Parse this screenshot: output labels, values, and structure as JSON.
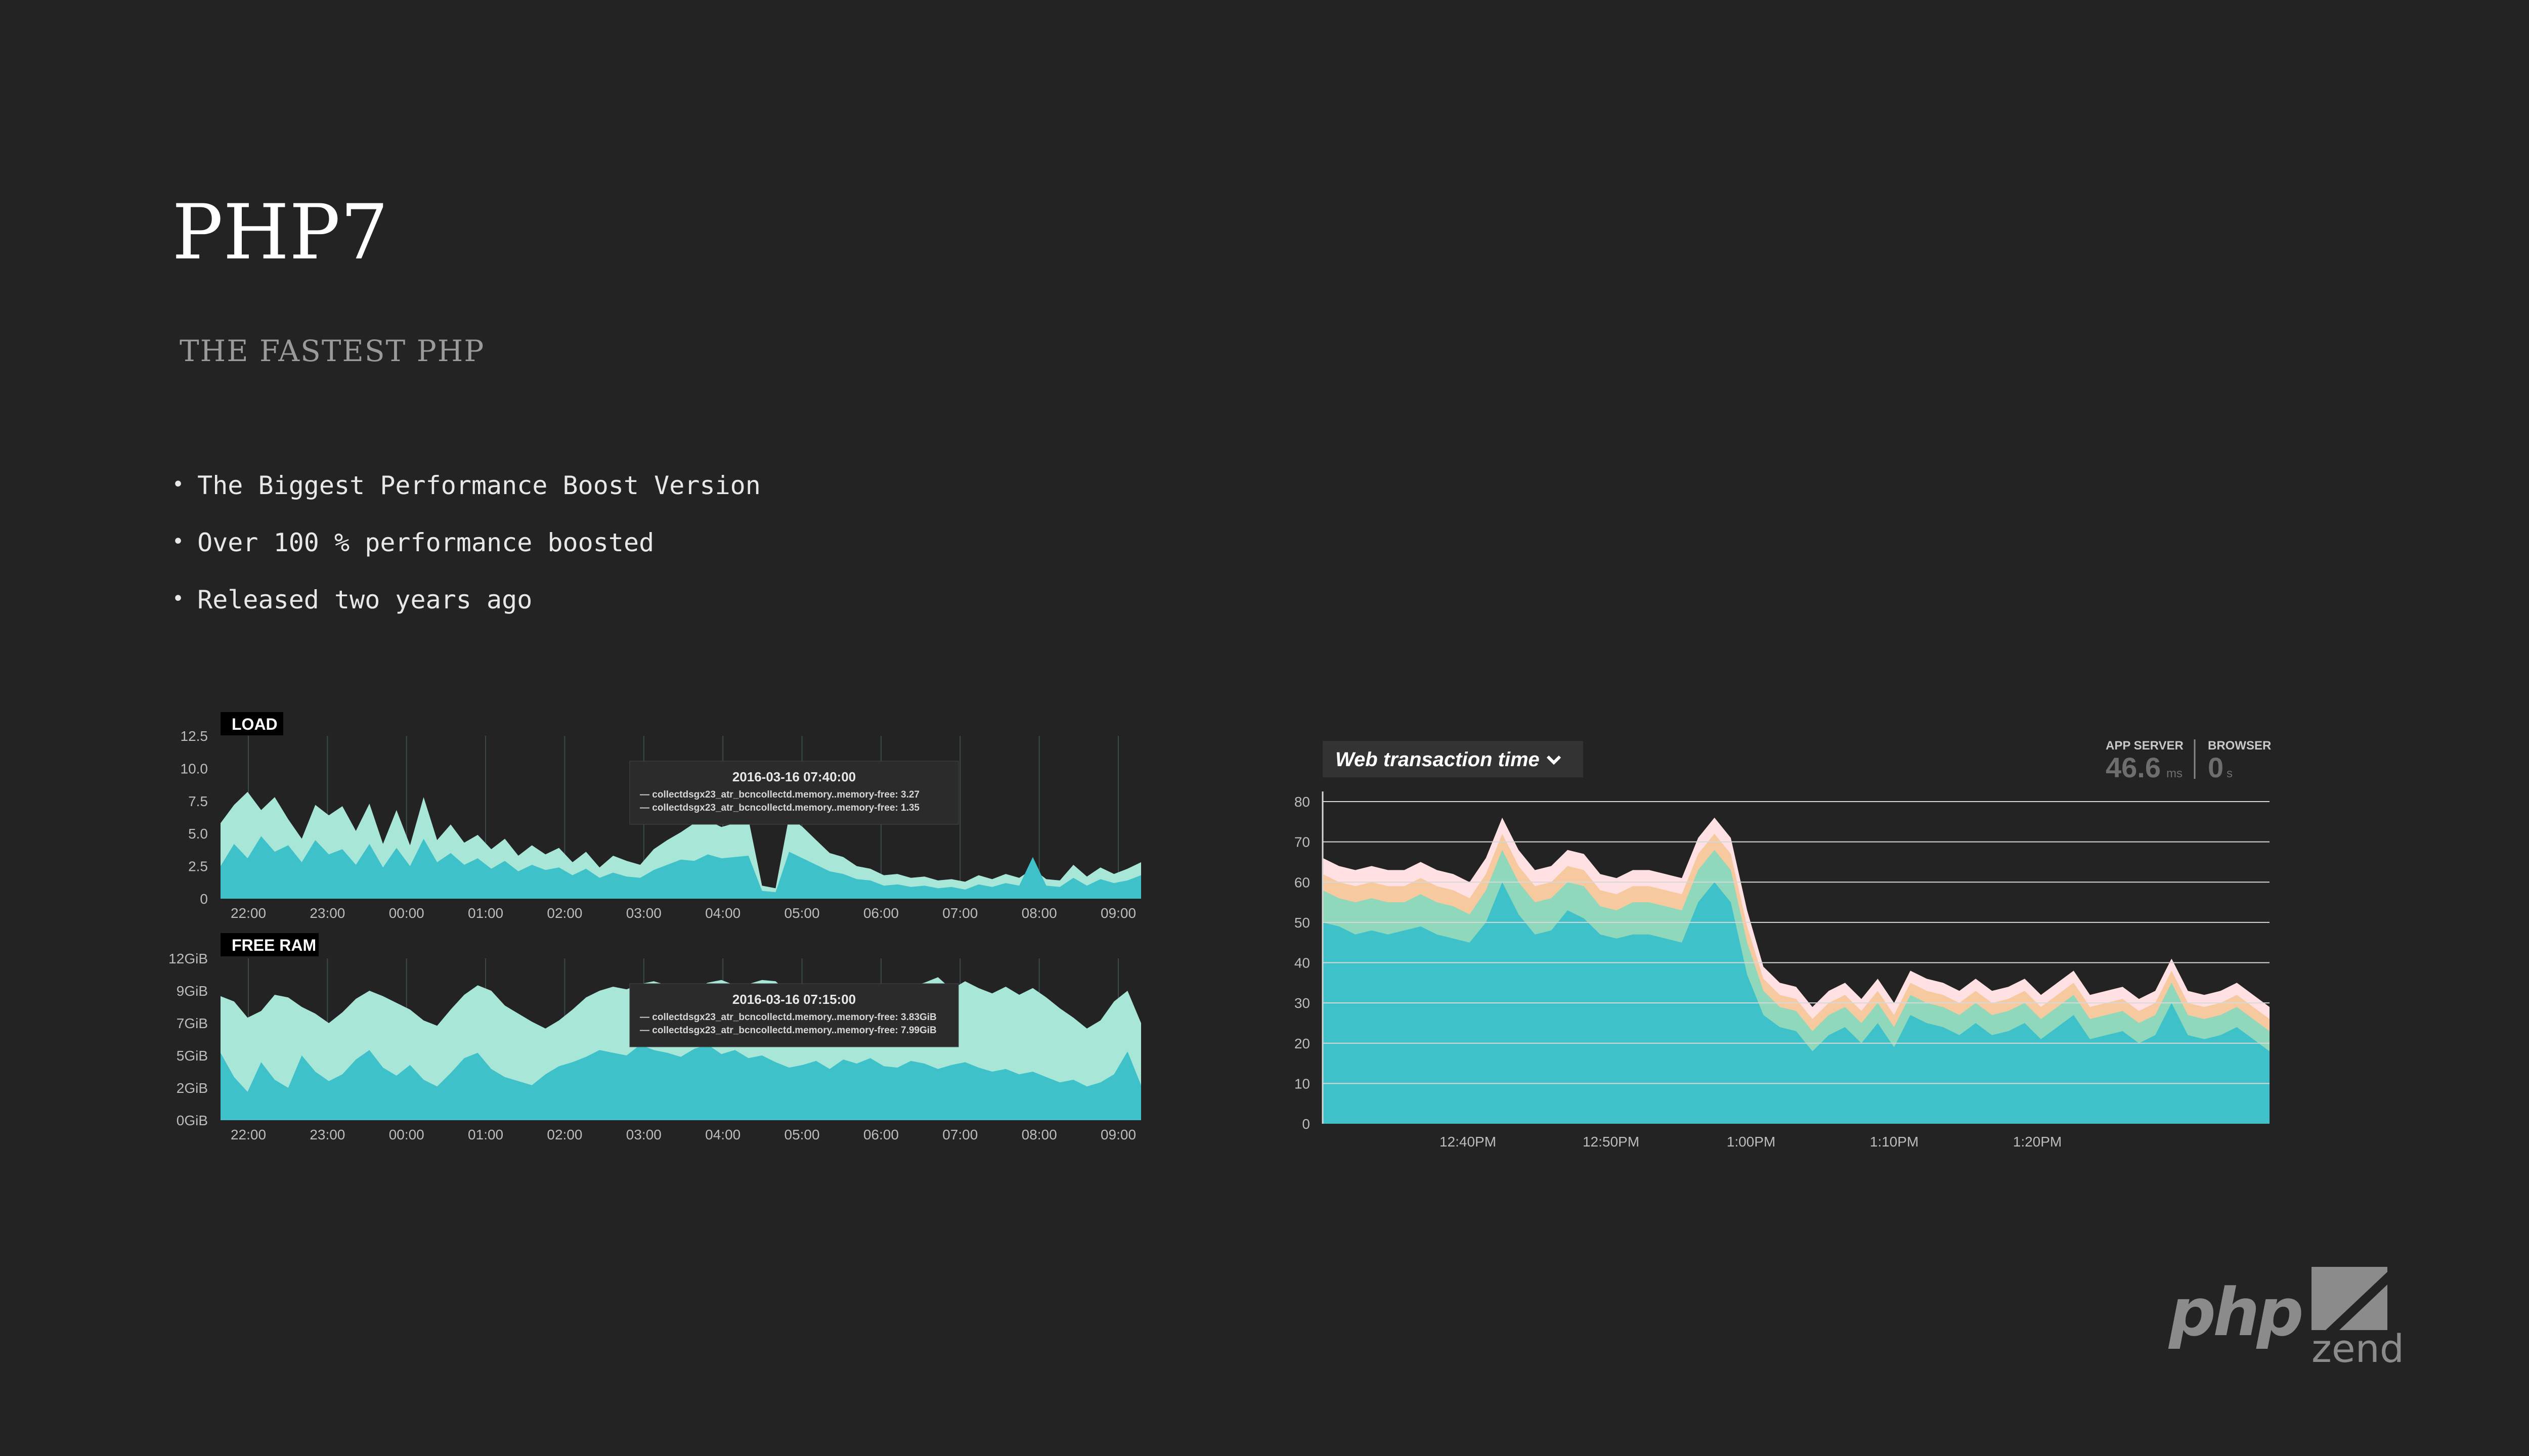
{
  "slide": {
    "title": "PHP7",
    "subtitle": "THE FASTEST PHP",
    "bullets": [
      "The Biggest Performance Boost Version",
      "Over 100 % performance boosted",
      "Released two years ago"
    ]
  },
  "logos": {
    "php": "php",
    "zend": "zend"
  },
  "colors": {
    "background": "#232323",
    "teal_dark": "#3ec1c9",
    "teal_light": "#a8e6d8",
    "green_band": "#90d8bc",
    "orange_band": "#f6c99f",
    "pink_band": "#ffe0e3"
  },
  "chart_data": [
    {
      "type": "area",
      "title": "LOAD",
      "x_ticks": [
        "22:00",
        "23:00",
        "00:00",
        "01:00",
        "02:00",
        "03:00",
        "04:00",
        "05:00",
        "06:00",
        "07:00",
        "08:00",
        "09:00"
      ],
      "y_ticks": [
        "0",
        "2.5",
        "5.0",
        "7.5",
        "10.0",
        "12.5"
      ],
      "ylim": [
        0,
        12.5
      ],
      "series": [
        {
          "values": [
            5.8,
            7.2,
            8.2,
            6.8,
            7.8,
            6.1,
            4.6,
            7.2,
            6.4,
            7.1,
            5.2,
            7.3,
            4.2,
            6.8,
            4.1,
            7.8,
            4.5,
            5.7,
            4.3,
            4.9,
            3.8,
            4.6,
            3.3,
            4.1,
            3.4,
            3.9,
            2.8,
            3.6,
            2.4,
            3.3,
            2.9,
            2.6,
            3.8,
            4.5,
            5.1,
            5.8,
            6.0,
            5.5,
            5.8,
            6.1,
            1.0,
            0.8,
            6.3,
            5.5,
            4.5,
            3.5,
            3.2,
            2.5,
            2.3,
            1.8,
            1.9,
            1.6,
            1.7,
            1.4,
            1.5,
            1.3,
            1.8,
            1.5,
            1.9,
            1.6,
            2.3,
            1.5,
            1.4,
            2.6,
            1.7,
            2.4,
            1.9,
            2.3,
            2.8
          ]
        },
        {
          "values": [
            2.5,
            4.2,
            3.1,
            4.8,
            3.6,
            4.1,
            2.8,
            4.5,
            3.4,
            3.8,
            2.6,
            4.2,
            2.4,
            3.9,
            2.5,
            4.6,
            2.8,
            3.5,
            2.6,
            3.1,
            2.3,
            2.9,
            2.1,
            2.6,
            2.2,
            2.4,
            1.8,
            2.3,
            1.6,
            2.0,
            1.7,
            1.6,
            2.2,
            2.6,
            3.0,
            2.9,
            3.4,
            3.1,
            3.2,
            3.3,
            0.6,
            0.5,
            3.6,
            3.1,
            2.6,
            2.1,
            1.9,
            1.5,
            1.4,
            1.0,
            1.1,
            0.9,
            1.0,
            0.8,
            0.9,
            0.7,
            1.1,
            0.9,
            1.2,
            1.0,
            3.2,
            1.0,
            0.9,
            1.6,
            1.0,
            1.5,
            1.2,
            1.4,
            1.8
          ]
        }
      ],
      "tooltip": {
        "title": "2016-03-16 07:40:00",
        "rows": [
          "— collectdsgx23_atr_bcncollectd.memory..memory-free:  3.27",
          "— collectdsgx23_atr_bcncollectd.memory..memory-free:  1.35"
        ]
      }
    },
    {
      "type": "area",
      "title": "FREE RAM",
      "x_ticks": [
        "22:00",
        "23:00",
        "00:00",
        "01:00",
        "02:00",
        "03:00",
        "04:00",
        "05:00",
        "06:00",
        "07:00",
        "08:00",
        "09:00"
      ],
      "y_ticks": [
        "0GiB",
        "2GiB",
        "5GiB",
        "7GiB",
        "9GiB",
        "12GiB"
      ],
      "ylim": [
        0,
        12
      ],
      "series": [
        {
          "values": [
            9.2,
            8.8,
            7.6,
            8.1,
            9.3,
            9.1,
            8.4,
            7.9,
            7.2,
            8.0,
            9.0,
            9.6,
            9.2,
            8.7,
            8.2,
            7.4,
            7.0,
            8.2,
            9.3,
            10.0,
            9.6,
            8.5,
            7.9,
            7.3,
            6.8,
            7.4,
            8.2,
            9.1,
            9.6,
            9.9,
            9.7,
            10.1,
            10.3,
            10.0,
            9.6,
            9.8,
            10.2,
            10.4,
            10.0,
            10.1,
            10.4,
            10.3,
            9.4,
            8.7,
            7.2,
            7.9,
            8.4,
            9.5,
            10.1,
            9.5,
            8.8,
            9.9,
            10.2,
            10.6,
            9.7,
            10.3,
            9.8,
            9.4,
            9.9,
            9.3,
            9.8,
            9.1,
            8.3,
            7.6,
            6.8,
            7.4,
            8.8,
            9.6,
            7.2
          ]
        },
        {
          "values": [
            5.0,
            3.2,
            2.1,
            4.3,
            3.0,
            2.4,
            4.8,
            3.6,
            2.9,
            3.4,
            4.5,
            5.2,
            3.9,
            3.3,
            4.1,
            3.0,
            2.5,
            3.5,
            4.6,
            5.0,
            3.8,
            3.2,
            2.9,
            2.6,
            3.4,
            4.0,
            4.3,
            4.7,
            5.2,
            5.0,
            4.8,
            5.6,
            5.2,
            5.0,
            4.7,
            5.3,
            5.6,
            4.9,
            5.2,
            4.6,
            4.8,
            4.3,
            3.9,
            4.1,
            4.4,
            3.8,
            4.5,
            4.2,
            4.6,
            4.0,
            3.9,
            4.4,
            4.2,
            3.8,
            4.1,
            4.3,
            3.9,
            3.6,
            3.8,
            3.4,
            3.6,
            3.2,
            2.8,
            3.0,
            2.5,
            2.8,
            3.4,
            5.1,
            2.6
          ]
        }
      ],
      "tooltip": {
        "title": "2016-03-16 07:15:00",
        "rows": [
          "— collectdsgx23_atr_bcncollectd.memory..memory-free:  3.83GiB",
          "— collectdsgx23_atr_bcncollectd.memory..memory-free:  7.99GiB"
        ]
      }
    },
    {
      "type": "area",
      "title": "Web transaction time",
      "stats": [
        {
          "label": "APP SERVER",
          "value": "46.6",
          "unit": "ms"
        },
        {
          "label": "BROWSER",
          "value": "0",
          "unit": "s"
        }
      ],
      "x_ticks": [
        "12:40PM",
        "12:50PM",
        "1:00PM",
        "1:10PM",
        "1:20PM"
      ],
      "y_ticks": [
        "0",
        "10",
        "20",
        "30",
        "40",
        "50",
        "60",
        "70",
        "80"
      ],
      "ylim": [
        0,
        80
      ],
      "stacked": true,
      "series": [
        {
          "values": [
            50,
            49,
            47,
            48,
            47,
            48,
            49,
            47,
            46,
            45,
            50,
            60,
            52,
            47,
            48,
            53,
            51,
            47,
            46,
            47,
            47,
            46,
            45,
            55,
            60,
            55,
            37,
            27,
            24,
            23,
            18,
            22,
            24,
            20,
            25,
            19,
            27,
            25,
            24,
            22,
            25,
            22,
            23,
            25,
            21,
            24,
            27,
            21,
            22,
            23,
            20,
            22,
            30,
            22,
            21,
            22,
            24,
            21,
            18
          ]
        },
        {
          "values": [
            8,
            7,
            8,
            8,
            8,
            7,
            8,
            8,
            8,
            7,
            8,
            8,
            8,
            8,
            8,
            7,
            8,
            7,
            7,
            8,
            8,
            8,
            8,
            8,
            8,
            8,
            8,
            6,
            5,
            5,
            5,
            5,
            5,
            5,
            5,
            5,
            5,
            5,
            5,
            5,
            5,
            5,
            5,
            5,
            5,
            5,
            5,
            5,
            5,
            5,
            5,
            5,
            5,
            5,
            5,
            5,
            5,
            5,
            5
          ]
        },
        {
          "values": [
            4,
            4,
            4,
            4,
            4,
            4,
            4,
            4,
            4,
            4,
            4,
            4,
            4,
            4,
            4,
            4,
            4,
            4,
            4,
            4,
            4,
            4,
            4,
            4,
            4,
            4,
            4,
            3,
            3,
            3,
            3,
            3,
            3,
            3,
            3,
            3,
            3,
            3,
            3,
            3,
            3,
            3,
            3,
            3,
            3,
            3,
            3,
            3,
            3,
            3,
            3,
            3,
            3,
            3,
            3,
            3,
            3,
            3,
            3
          ]
        },
        {
          "values": [
            4,
            4,
            4,
            4,
            4,
            4,
            4,
            4,
            4,
            4,
            4,
            4,
            4,
            4,
            4,
            4,
            4,
            4,
            4,
            4,
            4,
            4,
            4,
            4,
            4,
            4,
            4,
            3,
            3,
            3,
            3,
            3,
            3,
            3,
            3,
            3,
            3,
            3,
            3,
            3,
            3,
            3,
            3,
            3,
            3,
            3,
            3,
            3,
            3,
            3,
            3,
            3,
            3,
            3,
            3,
            3,
            3,
            3,
            3
          ]
        }
      ]
    }
  ]
}
